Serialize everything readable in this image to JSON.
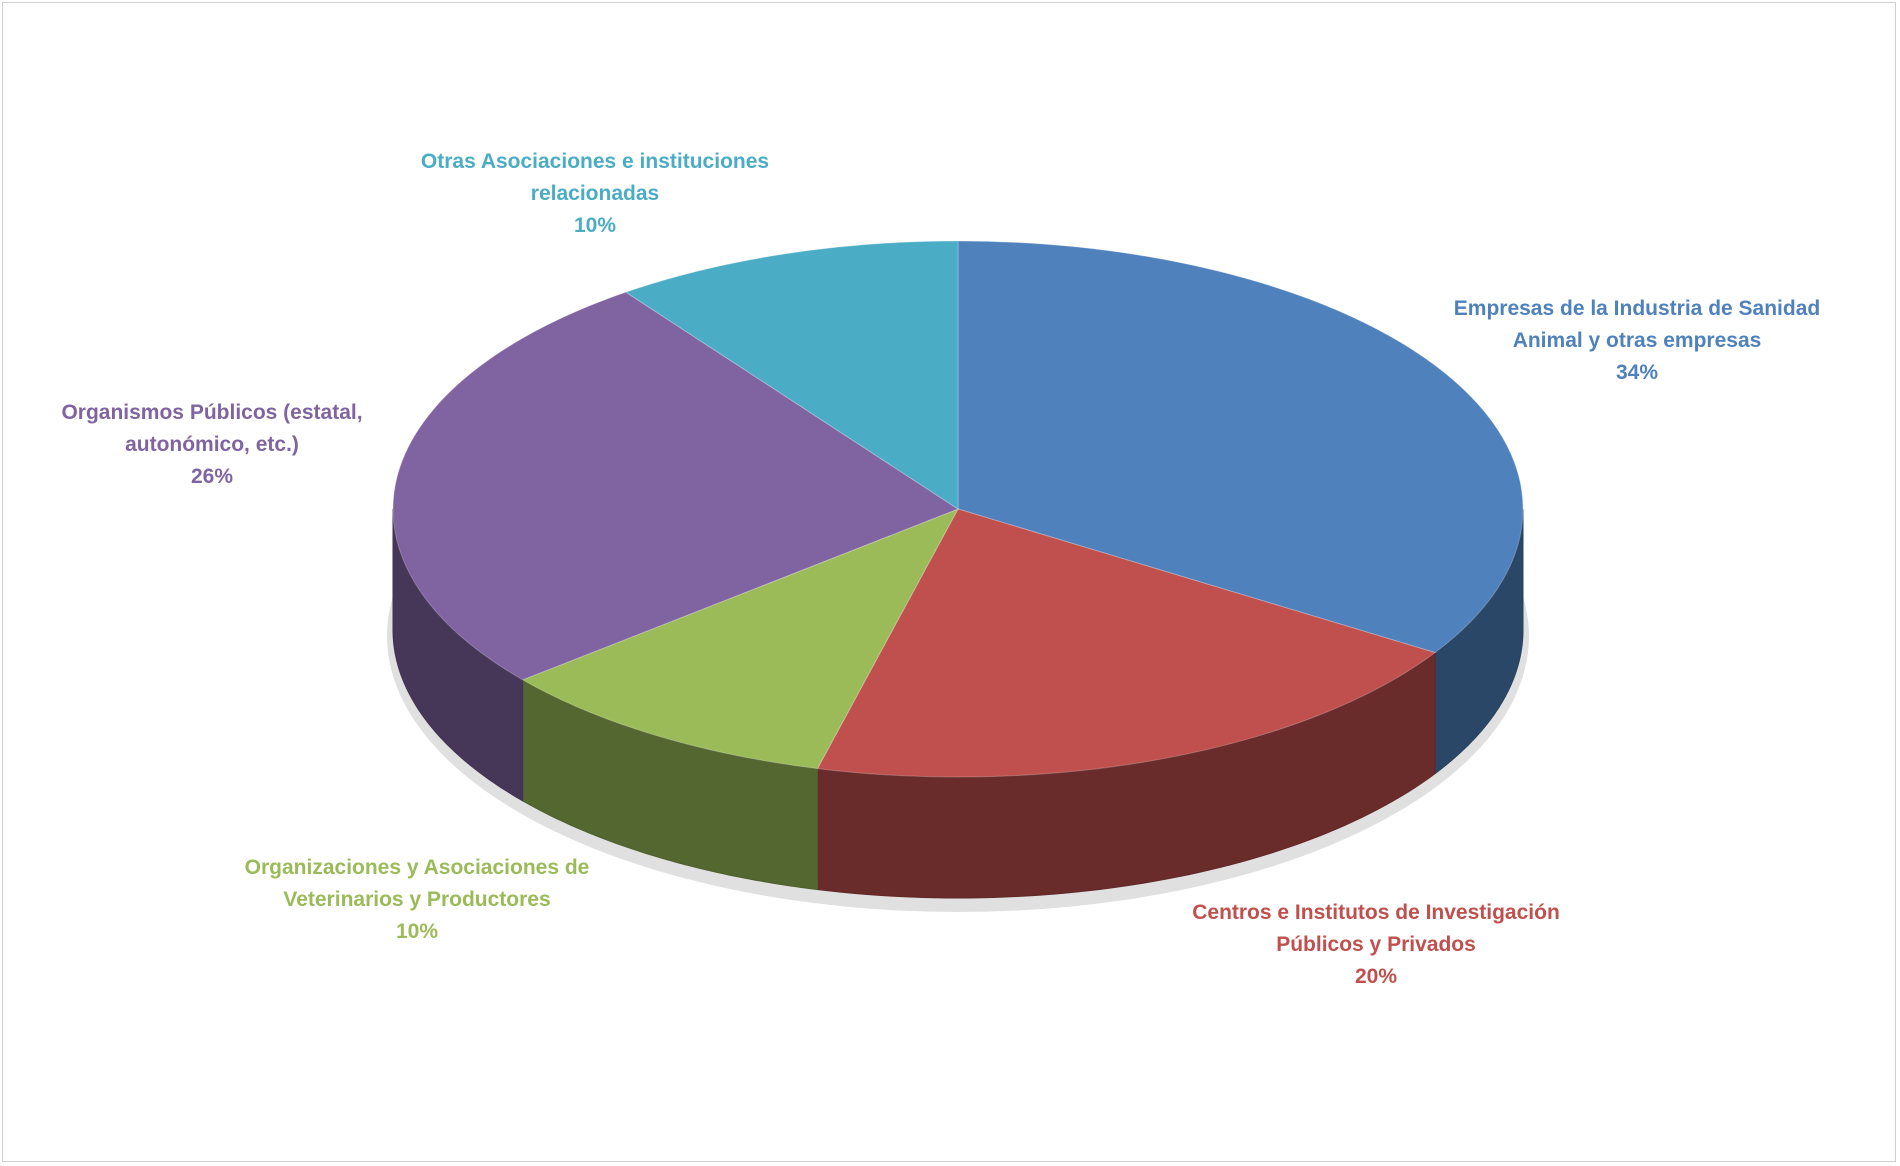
{
  "chart_data": {
    "type": "pie3d",
    "categories": [
      "Empresas de la Industria de Sanidad Animal y otras empresas",
      "Centros e Institutos de Investigación Públicos y Privados",
      "Organizaciones y Asociaciones de Veterinarios y Productores",
      "Organismos Públicos (estatal, autonómico, etc.)",
      "Otras Asociaciones e instituciones relacionadas"
    ],
    "values": [
      34,
      20,
      10,
      26,
      10
    ],
    "value_labels": [
      "34%",
      "20%",
      "10%",
      "26%",
      "10%"
    ],
    "colors": [
      "#4f81bd",
      "#c0504d",
      "#9bbb59",
      "#8064a2",
      "#4bacc6"
    ]
  }
}
